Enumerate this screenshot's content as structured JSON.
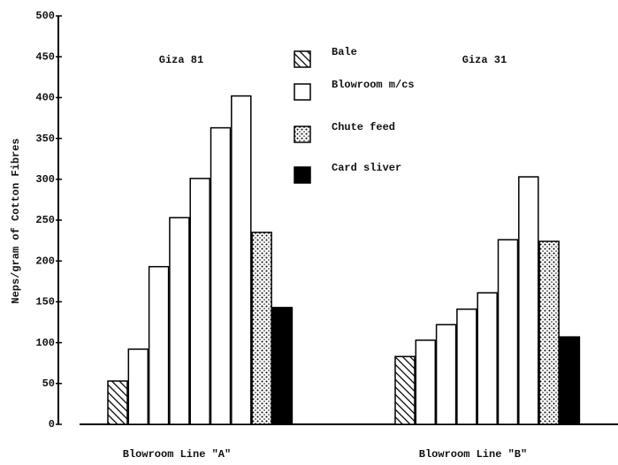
{
  "chart_data": {
    "type": "bar",
    "y_label": "Neps/gram of Cotton Fibres",
    "categories": [
      "Blowroom Line \"A\"",
      "Blowroom Line \"B\""
    ],
    "group_labels": [
      "Giza 81",
      "Giza 31"
    ],
    "series": [
      {
        "name": "Bale",
        "color": "#000000",
        "pattern": "hatch",
        "values": [
          53,
          83
        ]
      },
      {
        "name": "Blowroom m/cs",
        "color": "#ffffff",
        "pattern": "none",
        "values": [
          [
            92,
            193,
            253,
            301,
            363,
            402
          ],
          [
            103,
            122,
            141,
            161,
            226,
            303
          ]
        ]
      },
      {
        "name": "Chute feed",
        "color": "#ffffff",
        "pattern": "dots",
        "values": [
          235,
          224
        ]
      },
      {
        "name": "Card sliver",
        "color": "#000000",
        "pattern": "solid",
        "values": [
          143,
          107
        ]
      }
    ],
    "ylim": [
      0,
      500
    ],
    "yticks": [
      0,
      50,
      100,
      150,
      200,
      250,
      300,
      350,
      400,
      450,
      500
    ]
  }
}
